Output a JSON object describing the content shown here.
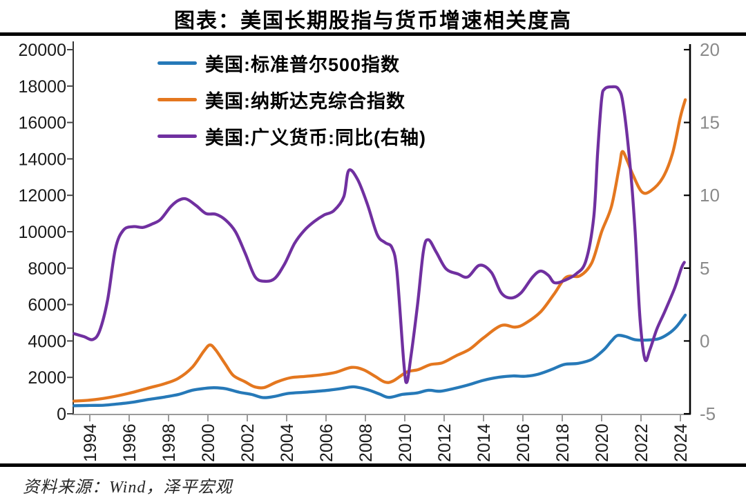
{
  "title": "图表：美国长期股指与货币增速相关度高",
  "source": "资料来源：Wind，泽平宏观",
  "legend": [
    {
      "label": "美国:标准普尔500指数",
      "color": "#2679B8"
    },
    {
      "label": "美国:纳斯达克综合指数",
      "color": "#E4771F"
    },
    {
      "label": "美国:广义货币:同比(右轴)",
      "color": "#7030A0"
    }
  ],
  "chart_data": {
    "type": "line",
    "title": "图表：美国长期股指与货币增速相关度高",
    "xlabel": "",
    "ylabel_left": "",
    "ylabel_right": "",
    "grid": false,
    "legend_position": "top-left-inside",
    "x_ticks": [
      1994,
      1996,
      1998,
      2000,
      2002,
      2004,
      2006,
      2008,
      2010,
      2012,
      2014,
      2016,
      2018,
      2020,
      2022,
      2024
    ],
    "x_range": [
      1993.2,
      2024.6
    ],
    "left_axis": {
      "min": 0,
      "max": 20000,
      "ticks": [
        0,
        2000,
        4000,
        6000,
        8000,
        10000,
        12000,
        14000,
        16000,
        18000,
        20000
      ]
    },
    "right_axis": {
      "min": -5,
      "max": 20,
      "ticks": [
        -5,
        0,
        5,
        10,
        15,
        20
      ]
    },
    "series": [
      {
        "name": "美国:标准普尔500指数",
        "axis": "left",
        "color": "#2679B8",
        "points": [
          [
            1993.2,
            445
          ],
          [
            1994,
            460
          ],
          [
            1994.7,
            470
          ],
          [
            1995.5,
            550
          ],
          [
            1996.2,
            640
          ],
          [
            1997,
            790
          ],
          [
            1997.8,
            920
          ],
          [
            1998.5,
            1060
          ],
          [
            1999.2,
            1290
          ],
          [
            1999.8,
            1390
          ],
          [
            2000.3,
            1430
          ],
          [
            2000.9,
            1380
          ],
          [
            2001.6,
            1180
          ],
          [
            2002.2,
            1070
          ],
          [
            2002.8,
            890
          ],
          [
            2003.4,
            960
          ],
          [
            2004.1,
            1120
          ],
          [
            2005,
            1190
          ],
          [
            2006,
            1280
          ],
          [
            2006.8,
            1390
          ],
          [
            2007.4,
            1480
          ],
          [
            2008.1,
            1330
          ],
          [
            2008.7,
            1090
          ],
          [
            2009.2,
            900
          ],
          [
            2009.9,
            1070
          ],
          [
            2010.6,
            1140
          ],
          [
            2011.2,
            1290
          ],
          [
            2011.8,
            1240
          ],
          [
            2012.5,
            1390
          ],
          [
            2013.2,
            1580
          ],
          [
            2014,
            1840
          ],
          [
            2014.8,
            2010
          ],
          [
            2015.5,
            2080
          ],
          [
            2016.1,
            2060
          ],
          [
            2016.8,
            2180
          ],
          [
            2017.5,
            2450
          ],
          [
            2018.1,
            2710
          ],
          [
            2018.8,
            2770
          ],
          [
            2019.5,
            2990
          ],
          [
            2020.1,
            3500
          ],
          [
            2020.5,
            4000
          ],
          [
            2020.8,
            4300
          ],
          [
            2021.2,
            4250
          ],
          [
            2021.7,
            4070
          ],
          [
            2022.3,
            4050
          ],
          [
            2022.9,
            4120
          ],
          [
            2023.4,
            4400
          ],
          [
            2023.8,
            4780
          ],
          [
            2024.25,
            5420
          ]
        ]
      },
      {
        "name": "美国:纳斯达克综合指数",
        "axis": "left",
        "color": "#E4771F",
        "points": [
          [
            1993.2,
            700
          ],
          [
            1994,
            750
          ],
          [
            1995,
            900
          ],
          [
            1996,
            1130
          ],
          [
            1997,
            1420
          ],
          [
            1997.8,
            1650
          ],
          [
            1998.5,
            1950
          ],
          [
            1999.2,
            2550
          ],
          [
            1999.8,
            3450
          ],
          [
            2000.1,
            3780
          ],
          [
            2000.4,
            3500
          ],
          [
            2000.9,
            2700
          ],
          [
            2001.3,
            2100
          ],
          [
            2001.9,
            1750
          ],
          [
            2002.35,
            1490
          ],
          [
            2002.85,
            1440
          ],
          [
            2003.5,
            1750
          ],
          [
            2004.2,
            1980
          ],
          [
            2005,
            2060
          ],
          [
            2005.8,
            2150
          ],
          [
            2006.5,
            2280
          ],
          [
            2007.3,
            2550
          ],
          [
            2007.9,
            2420
          ],
          [
            2008.5,
            2050
          ],
          [
            2009,
            1740
          ],
          [
            2009.4,
            1800
          ],
          [
            2010.1,
            2290
          ],
          [
            2010.7,
            2430
          ],
          [
            2011.3,
            2700
          ],
          [
            2011.9,
            2800
          ],
          [
            2012.6,
            3180
          ],
          [
            2013.3,
            3550
          ],
          [
            2014,
            4170
          ],
          [
            2014.9,
            4850
          ],
          [
            2015.6,
            4760
          ],
          [
            2016.1,
            4950
          ],
          [
            2016.9,
            5600
          ],
          [
            2017.6,
            6600
          ],
          [
            2018.2,
            7500
          ],
          [
            2018.9,
            7580
          ],
          [
            2019.5,
            8300
          ],
          [
            2020,
            10000
          ],
          [
            2020.5,
            11400
          ],
          [
            2020.9,
            13600
          ],
          [
            2021.05,
            14400
          ],
          [
            2021.3,
            13900
          ],
          [
            2021.6,
            13100
          ],
          [
            2022.05,
            12180
          ],
          [
            2022.5,
            12250
          ],
          [
            2023.1,
            12950
          ],
          [
            2023.6,
            14300
          ],
          [
            2024,
            16300
          ],
          [
            2024.25,
            17250
          ]
        ]
      },
      {
        "name": "美国:广义货币:同比(右轴)",
        "axis": "right",
        "color": "#7030A0",
        "points": [
          [
            1993.2,
            0.5
          ],
          [
            1993.7,
            0.3
          ],
          [
            1994.15,
            0.1
          ],
          [
            1994.5,
            0.7
          ],
          [
            1994.9,
            2.8
          ],
          [
            1995.3,
            6.3
          ],
          [
            1995.7,
            7.6
          ],
          [
            1996.2,
            7.85
          ],
          [
            1996.7,
            7.8
          ],
          [
            1997.2,
            8.05
          ],
          [
            1997.6,
            8.35
          ],
          [
            1998.1,
            9.2
          ],
          [
            1998.5,
            9.65
          ],
          [
            1998.9,
            9.75
          ],
          [
            1999.4,
            9.3
          ],
          [
            1999.9,
            8.75
          ],
          [
            2000.4,
            8.7
          ],
          [
            2000.9,
            8.3
          ],
          [
            2001.4,
            7.5
          ],
          [
            2001.9,
            6.0
          ],
          [
            2002.4,
            4.4
          ],
          [
            2002.9,
            4.1
          ],
          [
            2003.4,
            4.3
          ],
          [
            2003.9,
            5.3
          ],
          [
            2004.4,
            6.7
          ],
          [
            2004.9,
            7.6
          ],
          [
            2005.4,
            8.2
          ],
          [
            2005.9,
            8.65
          ],
          [
            2006.4,
            8.95
          ],
          [
            2006.9,
            9.9
          ],
          [
            2007.15,
            11.7
          ],
          [
            2007.6,
            11.1
          ],
          [
            2008.1,
            9.4
          ],
          [
            2008.6,
            7.3
          ],
          [
            2009.0,
            6.75
          ],
          [
            2009.35,
            6.4
          ],
          [
            2009.6,
            4.8
          ],
          [
            2009.95,
            -1.5
          ],
          [
            2010.1,
            -2.85
          ],
          [
            2010.3,
            -1.2
          ],
          [
            2010.65,
            2.5
          ],
          [
            2010.95,
            6.2
          ],
          [
            2011.2,
            6.95
          ],
          [
            2011.6,
            6.1
          ],
          [
            2012.1,
            4.95
          ],
          [
            2012.7,
            4.6
          ],
          [
            2013.2,
            4.4
          ],
          [
            2013.8,
            5.2
          ],
          [
            2014.4,
            4.7
          ],
          [
            2014.9,
            3.3
          ],
          [
            2015.4,
            2.95
          ],
          [
            2015.9,
            3.3
          ],
          [
            2016.5,
            4.4
          ],
          [
            2016.9,
            4.8
          ],
          [
            2017.3,
            4.5
          ],
          [
            2017.6,
            4.0
          ],
          [
            2018.1,
            4.15
          ],
          [
            2018.7,
            4.6
          ],
          [
            2019.2,
            5.5
          ],
          [
            2019.6,
            8.5
          ],
          [
            2019.8,
            13.0
          ],
          [
            2020.0,
            16.6
          ],
          [
            2020.15,
            17.3
          ],
          [
            2020.5,
            17.45
          ],
          [
            2020.85,
            17.3
          ],
          [
            2021.1,
            16.2
          ],
          [
            2021.45,
            12.0
          ],
          [
            2021.7,
            7.5
          ],
          [
            2021.95,
            1.5
          ],
          [
            2022.2,
            -1.25
          ],
          [
            2022.45,
            -0.6
          ],
          [
            2022.8,
            0.8
          ],
          [
            2023.2,
            2.0
          ],
          [
            2023.7,
            3.6
          ],
          [
            2024.05,
            5.0
          ],
          [
            2024.2,
            5.4
          ]
        ]
      }
    ]
  }
}
